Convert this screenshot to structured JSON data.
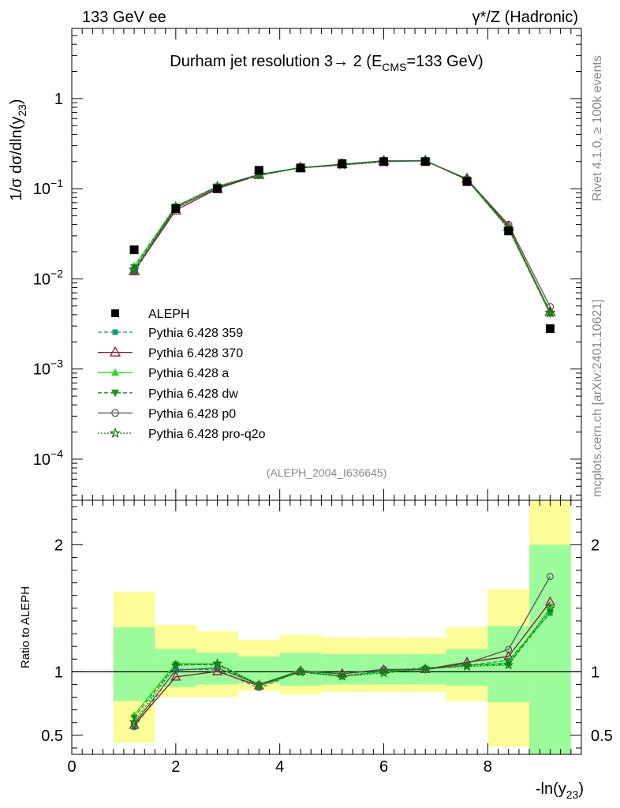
{
  "header": {
    "left": "133 GeV ee",
    "right": "γ*/Z (Hadronic)"
  },
  "side_labels": {
    "version": "Rivet 4.1.0, ≥ 100k events",
    "source": "mcplots.cern.ch [arXiv:2401.10621]"
  },
  "chart_data": [
    {
      "type": "line",
      "yscale": "log",
      "title": "Durham jet resolution 3→ 2 (ECMS=133 GeV)",
      "title_parts": {
        "main": "Durham jet resolution 3",
        "arrow": "→",
        "tail": " 2 (E",
        "sub": "CMS",
        "end": "=133 GeV)"
      },
      "ylabel": {
        "pre": "1/σ  dσ/dln(y",
        "sub": "23",
        "post": ")"
      },
      "xlim": [
        0,
        9.8
      ],
      "ylim": [
        3.5e-05,
        6
      ],
      "yticks": [
        {
          "value": 1,
          "base": "1",
          "exp": ""
        },
        {
          "value": 0.1,
          "base": "10",
          "exp": "−1"
        },
        {
          "value": 0.01,
          "base": "10",
          "exp": "−2"
        },
        {
          "value": 0.001,
          "base": "10",
          "exp": "−3"
        },
        {
          "value": 0.0001,
          "base": "10",
          "exp": "−4"
        }
      ],
      "watermark": "(ALEPH_2004_I636645)",
      "data": {
        "name": "ALEPH",
        "x": [
          1.2,
          2.0,
          2.8,
          3.6,
          4.4,
          5.2,
          6.0,
          6.8,
          7.6,
          8.4,
          9.2
        ],
        "y": [
          0.021,
          0.06,
          0.1,
          0.16,
          0.17,
          0.19,
          0.2,
          0.2,
          0.12,
          0.034,
          0.0028
        ]
      },
      "series": [
        {
          "name": "Pythia 6.428 359",
          "color": "#00a07a",
          "dash": "5,3",
          "marker": "square",
          "values": [
            0.0118,
            0.0613,
            0.1016,
            0.1392,
            0.171,
            0.184,
            0.202,
            0.206,
            0.126,
            0.0366,
            0.0041
          ]
        },
        {
          "name": "Pythia 6.428 370",
          "color": "#8b1a2a",
          "dash": "",
          "marker": "triangle-open",
          "values": [
            0.0122,
            0.0575,
            0.1002,
            0.1424,
            0.171,
            0.1872,
            0.203,
            0.204,
            0.129,
            0.038,
            0.0043
          ]
        },
        {
          "name": "Pythia 6.428 a",
          "color": "#22dd22",
          "dash": "",
          "marker": "triangle",
          "values": [
            0.0138,
            0.064,
            0.106,
            0.144,
            0.172,
            0.184,
            0.2,
            0.204,
            0.126,
            0.0364,
            0.0042
          ]
        },
        {
          "name": "Pythia 6.428 dw",
          "color": "#119911",
          "dash": "5,3",
          "marker": "triangle-down",
          "values": [
            0.0134,
            0.0634,
            0.1055,
            0.142,
            0.17,
            0.183,
            0.201,
            0.205,
            0.1262,
            0.036,
            0.0041
          ]
        },
        {
          "name": "Pythia 6.428 p0",
          "color": "#555555",
          "dash": "",
          "marker": "circle-open",
          "values": [
            0.0124,
            0.0607,
            0.103,
            0.144,
            0.171,
            0.187,
            0.204,
            0.203,
            0.128,
            0.04,
            0.0049
          ]
        },
        {
          "name": "Pythia 6.428 pro-q2o",
          "color": "#117711",
          "dash": "2,2",
          "marker": "star",
          "values": [
            0.0127,
            0.063,
            0.1065,
            0.144,
            0.1695,
            0.1832,
            0.198,
            0.205,
            0.125,
            0.0358,
            0.0042
          ]
        }
      ]
    },
    {
      "type": "line",
      "title": "",
      "xlabel": {
        "pre": "-ln(y",
        "sub": "23",
        "post": ")"
      },
      "ylabel": "Ratio to ALEPH",
      "xlim": [
        0,
        9.8
      ],
      "ylim": [
        0.35,
        2.35
      ],
      "xticks": [
        0,
        2,
        4,
        6,
        8
      ],
      "yticks": [
        0.5,
        1,
        2
      ],
      "bands": [
        {
          "xlo": 0.8,
          "xhi": 1.6,
          "y_lo": 0.44,
          "y_hi": 1.63,
          "g_lo": 0.77,
          "g_hi": 1.35
        },
        {
          "xlo": 1.6,
          "xhi": 2.4,
          "y_lo": 0.8,
          "y_hi": 1.37,
          "g_lo": 0.88,
          "g_hi": 1.18
        },
        {
          "xlo": 2.4,
          "xhi": 3.2,
          "y_lo": 0.8,
          "y_hi": 1.32,
          "g_lo": 0.9,
          "g_hi": 1.15
        },
        {
          "xlo": 3.2,
          "xhi": 4.0,
          "y_lo": 0.85,
          "y_hi": 1.25,
          "g_lo": 0.91,
          "g_hi": 1.12
        },
        {
          "xlo": 4.0,
          "xhi": 4.8,
          "y_lo": 0.82,
          "y_hi": 1.29,
          "g_lo": 0.89,
          "g_hi": 1.15
        },
        {
          "xlo": 4.8,
          "xhi": 5.6,
          "y_lo": 0.84,
          "y_hi": 1.27,
          "g_lo": 0.9,
          "g_hi": 1.14
        },
        {
          "xlo": 5.6,
          "xhi": 6.4,
          "y_lo": 0.84,
          "y_hi": 1.27,
          "g_lo": 0.9,
          "g_hi": 1.14
        },
        {
          "xlo": 6.4,
          "xhi": 7.2,
          "y_lo": 0.84,
          "y_hi": 1.27,
          "g_lo": 0.9,
          "g_hi": 1.14
        },
        {
          "xlo": 7.2,
          "xhi": 8.0,
          "y_lo": 0.77,
          "y_hi": 1.35,
          "g_lo": 0.89,
          "g_hi": 1.18
        },
        {
          "xlo": 8.0,
          "xhi": 8.8,
          "y_lo": 0.41,
          "y_hi": 1.65,
          "g_lo": 0.76,
          "g_hi": 1.36
        },
        {
          "xlo": 8.8,
          "xhi": 9.6,
          "y_lo": 0.35,
          "y_hi": 2.35,
          "g_lo": 0.35,
          "g_hi": 2.0
        }
      ],
      "reference_line": 1.0,
      "x": [
        1.2,
        2.0,
        2.8,
        3.6,
        4.4,
        5.2,
        6.0,
        6.8,
        7.6,
        8.4,
        9.2
      ],
      "series": [
        {
          "name": "Pythia 6.428 359",
          "values": [
            0.56,
            1.02,
            1.016,
            0.87,
            1.006,
            0.968,
            1.01,
            1.03,
            1.05,
            1.09,
            1.46
          ]
        },
        {
          "name": "Pythia 6.428 370",
          "values": [
            0.58,
            0.96,
            1.002,
            0.89,
            1.006,
            0.985,
            1.015,
            1.02,
            1.075,
            1.12,
            1.55
          ]
        },
        {
          "name": "Pythia 6.428 a",
          "values": [
            0.66,
            1.067,
            1.06,
            0.9,
            1.012,
            0.968,
            1.0,
            1.02,
            1.05,
            1.07,
            1.49
          ]
        },
        {
          "name": "Pythia 6.428 dw",
          "values": [
            0.64,
            1.057,
            1.055,
            0.888,
            1.0,
            0.963,
            1.005,
            1.025,
            1.052,
            1.06,
            1.47
          ]
        },
        {
          "name": "Pythia 6.428 p0",
          "values": [
            0.59,
            1.012,
            1.03,
            0.9,
            1.006,
            0.984,
            1.02,
            1.015,
            1.067,
            1.176,
            1.75
          ]
        },
        {
          "name": "Pythia 6.428 pro-q2o",
          "values": [
            0.605,
            1.05,
            1.065,
            0.9,
            0.997,
            0.964,
            0.99,
            1.025,
            1.042,
            1.053,
            1.5
          ]
        }
      ]
    }
  ]
}
